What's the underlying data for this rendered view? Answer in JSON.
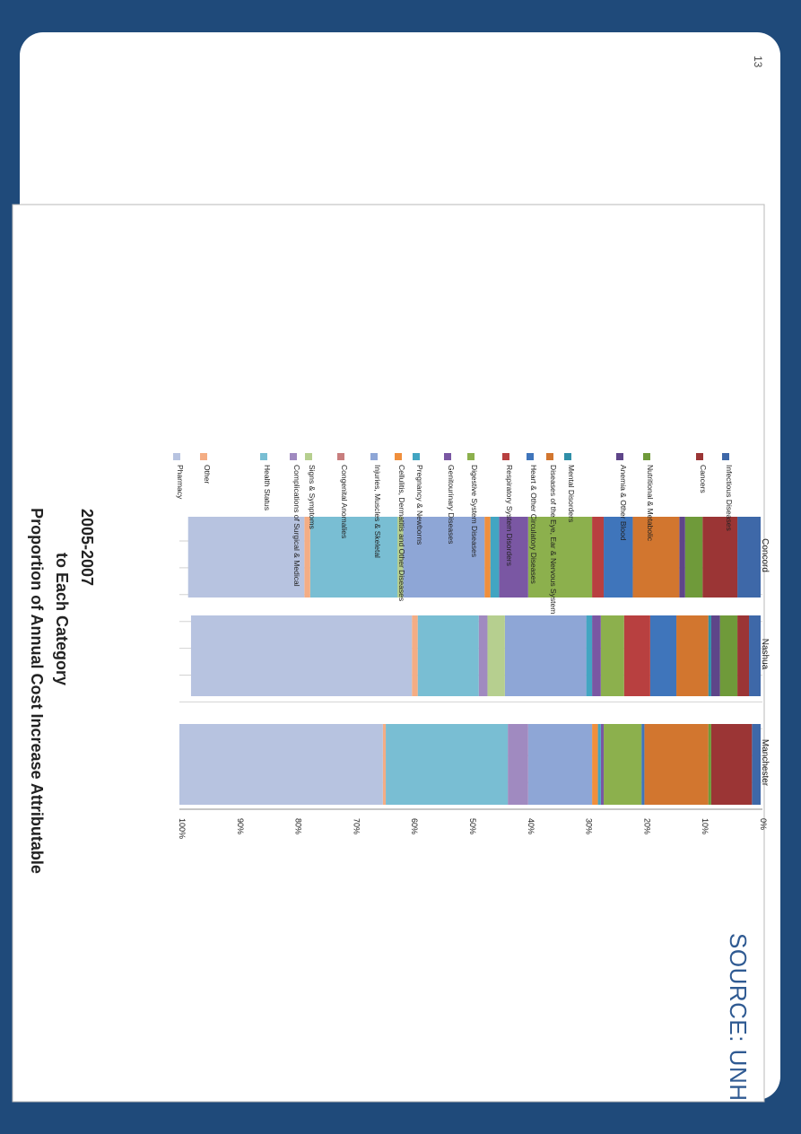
{
  "slide": {
    "page_number": "13",
    "source": "SOURCE: UNH"
  },
  "colors": {
    "background": "#1f4a7a",
    "slide": "#ffffff",
    "chart_panel": "#ffffff",
    "gridline": "#d2d2d2",
    "axis": "#8c8c8c",
    "text": "#222222"
  },
  "chart_data": {
    "type": "bar",
    "stacked": true,
    "percent": true,
    "title": "Proportion of Annual Cost Increase Attributable to Each Category 2005-2007",
    "title_lines": [
      "Proportion of Annual Cost Increase Attributable",
      "to Each Category",
      "2005-2007"
    ],
    "categories": [
      "Manchester",
      "Nashua",
      "Concord"
    ],
    "ylim": [
      0,
      100
    ],
    "yticks": [
      {
        "value": 0,
        "label": "0%"
      },
      {
        "value": 10,
        "label": "10%"
      },
      {
        "value": 20,
        "label": "20%"
      },
      {
        "value": 30,
        "label": "30%"
      },
      {
        "value": 40,
        "label": "40%"
      },
      {
        "value": 50,
        "label": "50%"
      },
      {
        "value": 60,
        "label": "60%"
      },
      {
        "value": 70,
        "label": "70%"
      },
      {
        "value": 80,
        "label": "80%"
      },
      {
        "value": 90,
        "label": "90%"
      },
      {
        "value": 100,
        "label": "100%"
      }
    ],
    "grid": true,
    "legend_position": "right",
    "series": [
      {
        "name": "Infectious Diseases",
        "color": "#3e68a8",
        "values": [
          1.5,
          2,
          4
        ]
      },
      {
        "name": "Cancers",
        "color": "#9b3535",
        "values": [
          7,
          2,
          6
        ]
      },
      {
        "name": "Nutritional & Metabolic",
        "color": "#6f9a3a",
        "values": [
          0.5,
          3,
          3
        ]
      },
      {
        "name": "Anemia & Other Blood",
        "color": "#5e4589",
        "values": [
          0,
          1.5,
          1
        ]
      },
      {
        "name": "Mental Disorders",
        "color": "#2f8fa8",
        "values": [
          0,
          0.5,
          0
        ]
      },
      {
        "name": "Diseases of the Eye, Ear & Nervous System",
        "color": "#d2762f",
        "values": [
          11,
          5.5,
          8
        ]
      },
      {
        "name": "Heart & Other Circulatory Diseases",
        "color": "#3f75bb",
        "values": [
          0.5,
          4.5,
          5
        ]
      },
      {
        "name": "Respiratory System Disorders",
        "color": "#b84040",
        "values": [
          0,
          4.5,
          2
        ]
      },
      {
        "name": "Digestive System Diseases",
        "color": "#8cb04d",
        "values": [
          6.5,
          4,
          11
        ]
      },
      {
        "name": "Genitourinary Diseases",
        "color": "#7a57a3",
        "values": [
          0.5,
          1.5,
          5
        ]
      },
      {
        "name": "Pregnancy & Newborns",
        "color": "#42a5c2",
        "values": [
          0.5,
          1,
          1.5
        ]
      },
      {
        "name": "Cellulitis, Dermatitis and Other Diseases",
        "color": "#f08f3c",
        "values": [
          1,
          0,
          1
        ]
      },
      {
        "name": "Injuries, Muscles & Skeletal",
        "color": "#8ea6d6",
        "values": [
          11,
          14,
          14
        ]
      },
      {
        "name": "Congenital Anomalies",
        "color": "#c87e7e",
        "values": [
          0,
          0,
          0
        ]
      },
      {
        "name": "Signs & Symptoms",
        "color": "#b6cf8f",
        "values": [
          0,
          3,
          1
        ]
      },
      {
        "name": "Complications of Surgical & Medical",
        "color": "#a08ac0",
        "values": [
          3.5,
          1.5,
          0
        ]
      },
      {
        "name": "Health Status",
        "color": "#79bed3",
        "values": [
          21,
          10.5,
          15
        ]
      },
      {
        "name": "Other",
        "color": "#f4ad84",
        "values": [
          0.5,
          1,
          1
        ]
      },
      {
        "name": "Pharmacy",
        "color": "#b7c3e0",
        "values": [
          35,
          38,
          20
        ]
      }
    ],
    "legend": [
      {
        "label": "Pharmacy",
        "color": "#b7c3e0"
      },
      {
        "label": "Other",
        "color": "#f4ad84"
      },
      {
        "label": "Health Status",
        "color": "#79bed3"
      },
      {
        "label": "Complications of Surgical & Medical",
        "color": "#a08ac0"
      },
      {
        "label": "Signs & Symptoms",
        "color": "#b6cf8f"
      },
      {
        "label": "Congenital Anomalies",
        "color": "#c87e7e"
      },
      {
        "label": "Injuries, Muscles & Skeletal",
        "color": "#8ea6d6"
      },
      {
        "label": "Cellulitis, Dermatitis and Other Diseases",
        "color": "#f08f3c"
      },
      {
        "label": "Pregnancy & Newborns",
        "color": "#42a5c2"
      },
      {
        "label": "Genitourinary Diseases",
        "color": "#7a57a3"
      },
      {
        "label": "Digestive System Diseases",
        "color": "#8cb04d"
      },
      {
        "label": "Respiratory System Disorders",
        "color": "#b84040"
      },
      {
        "label": "Heart & Other Circulatory Diseases",
        "color": "#3f75bb"
      },
      {
        "label": "Diseases of the Eye, Ear & Nervous System",
        "color": "#d2762f"
      },
      {
        "label": "Mental Disorders",
        "color": "#2f8fa8"
      },
      {
        "label": "Anemia & Other Blood",
        "color": "#5e4589"
      },
      {
        "label": "Nutritional & Metabolic",
        "color": "#6f9a3a"
      },
      {
        "label": "Cancers",
        "color": "#9b3535"
      },
      {
        "label": "Infectious Diseases",
        "color": "#3e68a8"
      }
    ]
  }
}
